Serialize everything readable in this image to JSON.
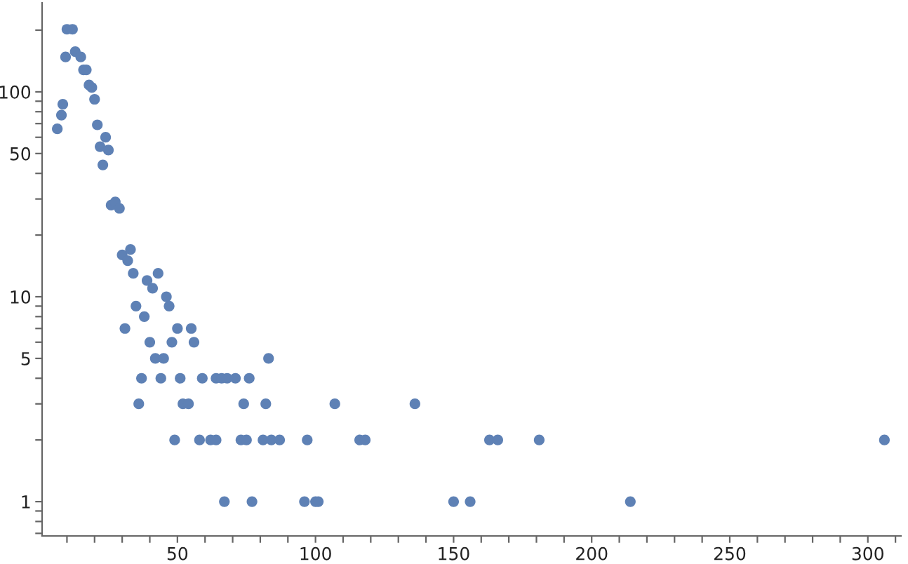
{
  "chart_data": {
    "type": "scatter",
    "log": "y",
    "color": "#5e81b5",
    "marker": "circle",
    "grid": false,
    "legend": false,
    "x": [
      6.5,
      8,
      8.5,
      9.5,
      10,
      12,
      13,
      15,
      16,
      17,
      18,
      19,
      20,
      21,
      22,
      23,
      24,
      25,
      26,
      27.5,
      29,
      30,
      31,
      32,
      33,
      34,
      35,
      38,
      39,
      41,
      43,
      46,
      47,
      50,
      55,
      40,
      48,
      56,
      42,
      45,
      83,
      37,
      44,
      51,
      59,
      64,
      66,
      68,
      71,
      76,
      36,
      52,
      54,
      74,
      82,
      107,
      136,
      49,
      58,
      62,
      64,
      73,
      75,
      81,
      84,
      87,
      97,
      116,
      118,
      163,
      166,
      181,
      306,
      67,
      77,
      96,
      100,
      101,
      150,
      156,
      214
    ],
    "values": [
      66,
      77,
      87,
      148,
      202,
      202,
      157,
      148,
      128,
      128,
      108,
      105,
      92,
      69,
      54,
      44,
      60,
      52,
      28,
      29,
      27,
      16,
      7,
      15,
      17,
      13,
      9,
      8,
      12,
      11,
      13,
      10,
      9,
      7,
      7,
      6,
      6,
      6,
      5,
      5,
      5,
      4,
      4,
      4,
      4,
      4,
      4,
      4,
      4,
      4,
      3,
      3,
      3,
      3,
      3,
      3,
      3,
      2,
      2,
      2,
      2,
      2,
      2,
      2,
      2,
      2,
      2,
      2,
      2,
      2,
      2,
      2,
      2,
      1,
      1,
      1,
      1,
      1,
      1,
      1,
      1
    ],
    "xlim": [
      1,
      312
    ],
    "xticks": [
      {
        "value": 10,
        "label": null
      },
      {
        "value": 20,
        "label": null
      },
      {
        "value": 30,
        "label": null
      },
      {
        "value": 40,
        "label": null
      },
      50,
      {
        "value": 60,
        "label": null
      },
      {
        "value": 70,
        "label": null
      },
      {
        "value": 80,
        "label": null
      },
      {
        "value": 90,
        "label": null
      },
      100,
      {
        "value": 110,
        "label": null
      },
      {
        "value": 120,
        "label": null
      },
      {
        "value": 130,
        "label": null
      },
      {
        "value": 140,
        "label": null
      },
      150,
      {
        "value": 160,
        "label": null
      },
      {
        "value": 170,
        "label": null
      },
      {
        "value": 180,
        "label": null
      },
      {
        "value": 190,
        "label": null
      },
      200,
      {
        "value": 210,
        "label": null
      },
      {
        "value": 220,
        "label": null
      },
      {
        "value": 230,
        "label": null
      },
      {
        "value": 240,
        "label": null
      },
      250,
      {
        "value": 260,
        "label": null
      },
      {
        "value": 270,
        "label": null
      },
      {
        "value": 280,
        "label": null
      },
      {
        "value": 290,
        "label": null
      },
      300,
      {
        "value": 310,
        "label": null
      }
    ],
    "ylim": [
      0.68,
      272
    ],
    "yticks": [
      {
        "value": 0.7,
        "label": null
      },
      {
        "value": 0.8,
        "label": null
      },
      {
        "value": 0.9,
        "label": null
      },
      1,
      {
        "value": 2,
        "label": null
      },
      {
        "value": 3,
        "label": null
      },
      {
        "value": 4,
        "label": null
      },
      5,
      {
        "value": 6,
        "label": null
      },
      {
        "value": 7,
        "label": null
      },
      {
        "value": 8,
        "label": null
      },
      {
        "value": 9,
        "label": null
      },
      10,
      {
        "value": 20,
        "label": null
      },
      {
        "value": 30,
        "label": null
      },
      {
        "value": 40,
        "label": null
      },
      50,
      {
        "value": 60,
        "label": null
      },
      {
        "value": 70,
        "label": null
      },
      {
        "value": 80,
        "label": null
      },
      {
        "value": 90,
        "label": null
      },
      100,
      {
        "value": 200,
        "label": null
      }
    ]
  }
}
